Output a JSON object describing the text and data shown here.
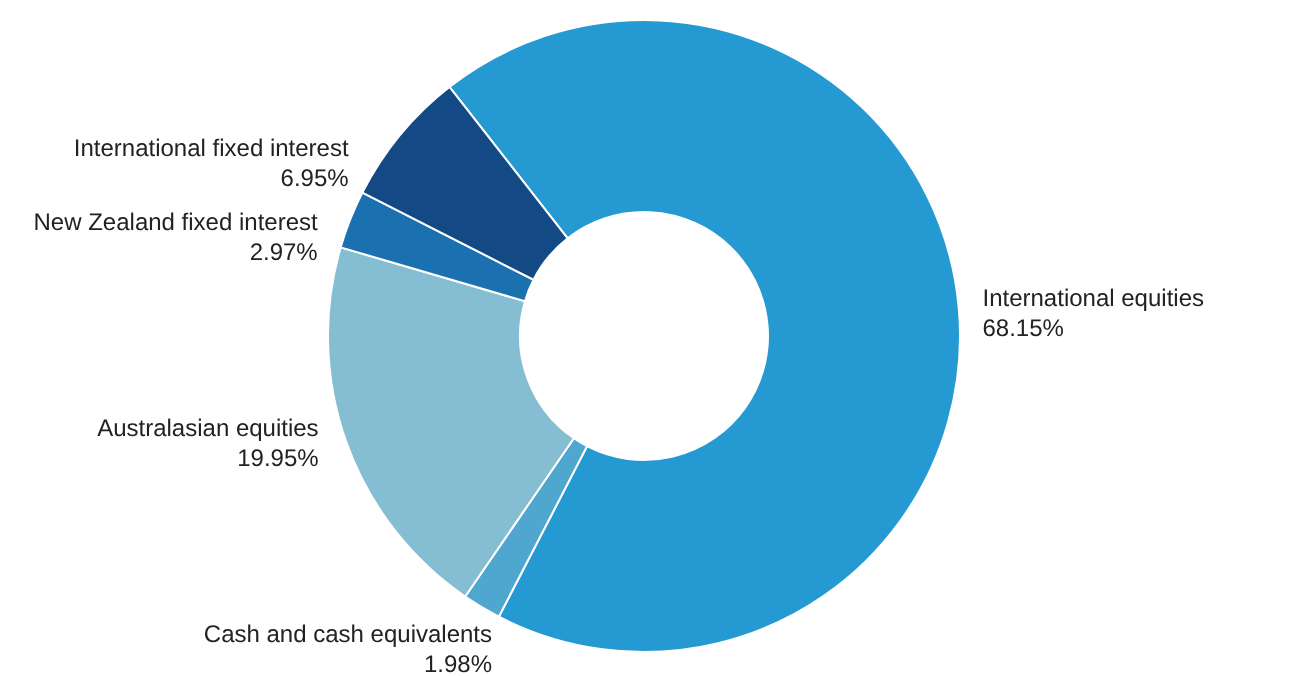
{
  "chart_data": {
    "type": "donut",
    "categories": [
      "International equities",
      "Cash and cash equivalents",
      "Australasian equities",
      "New Zealand fixed interest",
      "International fixed interest"
    ],
    "values": [
      68.15,
      1.98,
      19.95,
      2.97,
      6.95
    ],
    "value_labels": [
      "68.15%",
      "1.98%",
      "19.95%",
      "2.97%",
      "6.95%"
    ],
    "colors": [
      "#2599d2",
      "#4fa7cf",
      "#85bdd3",
      "#1b70b0",
      "#134a85"
    ]
  }
}
